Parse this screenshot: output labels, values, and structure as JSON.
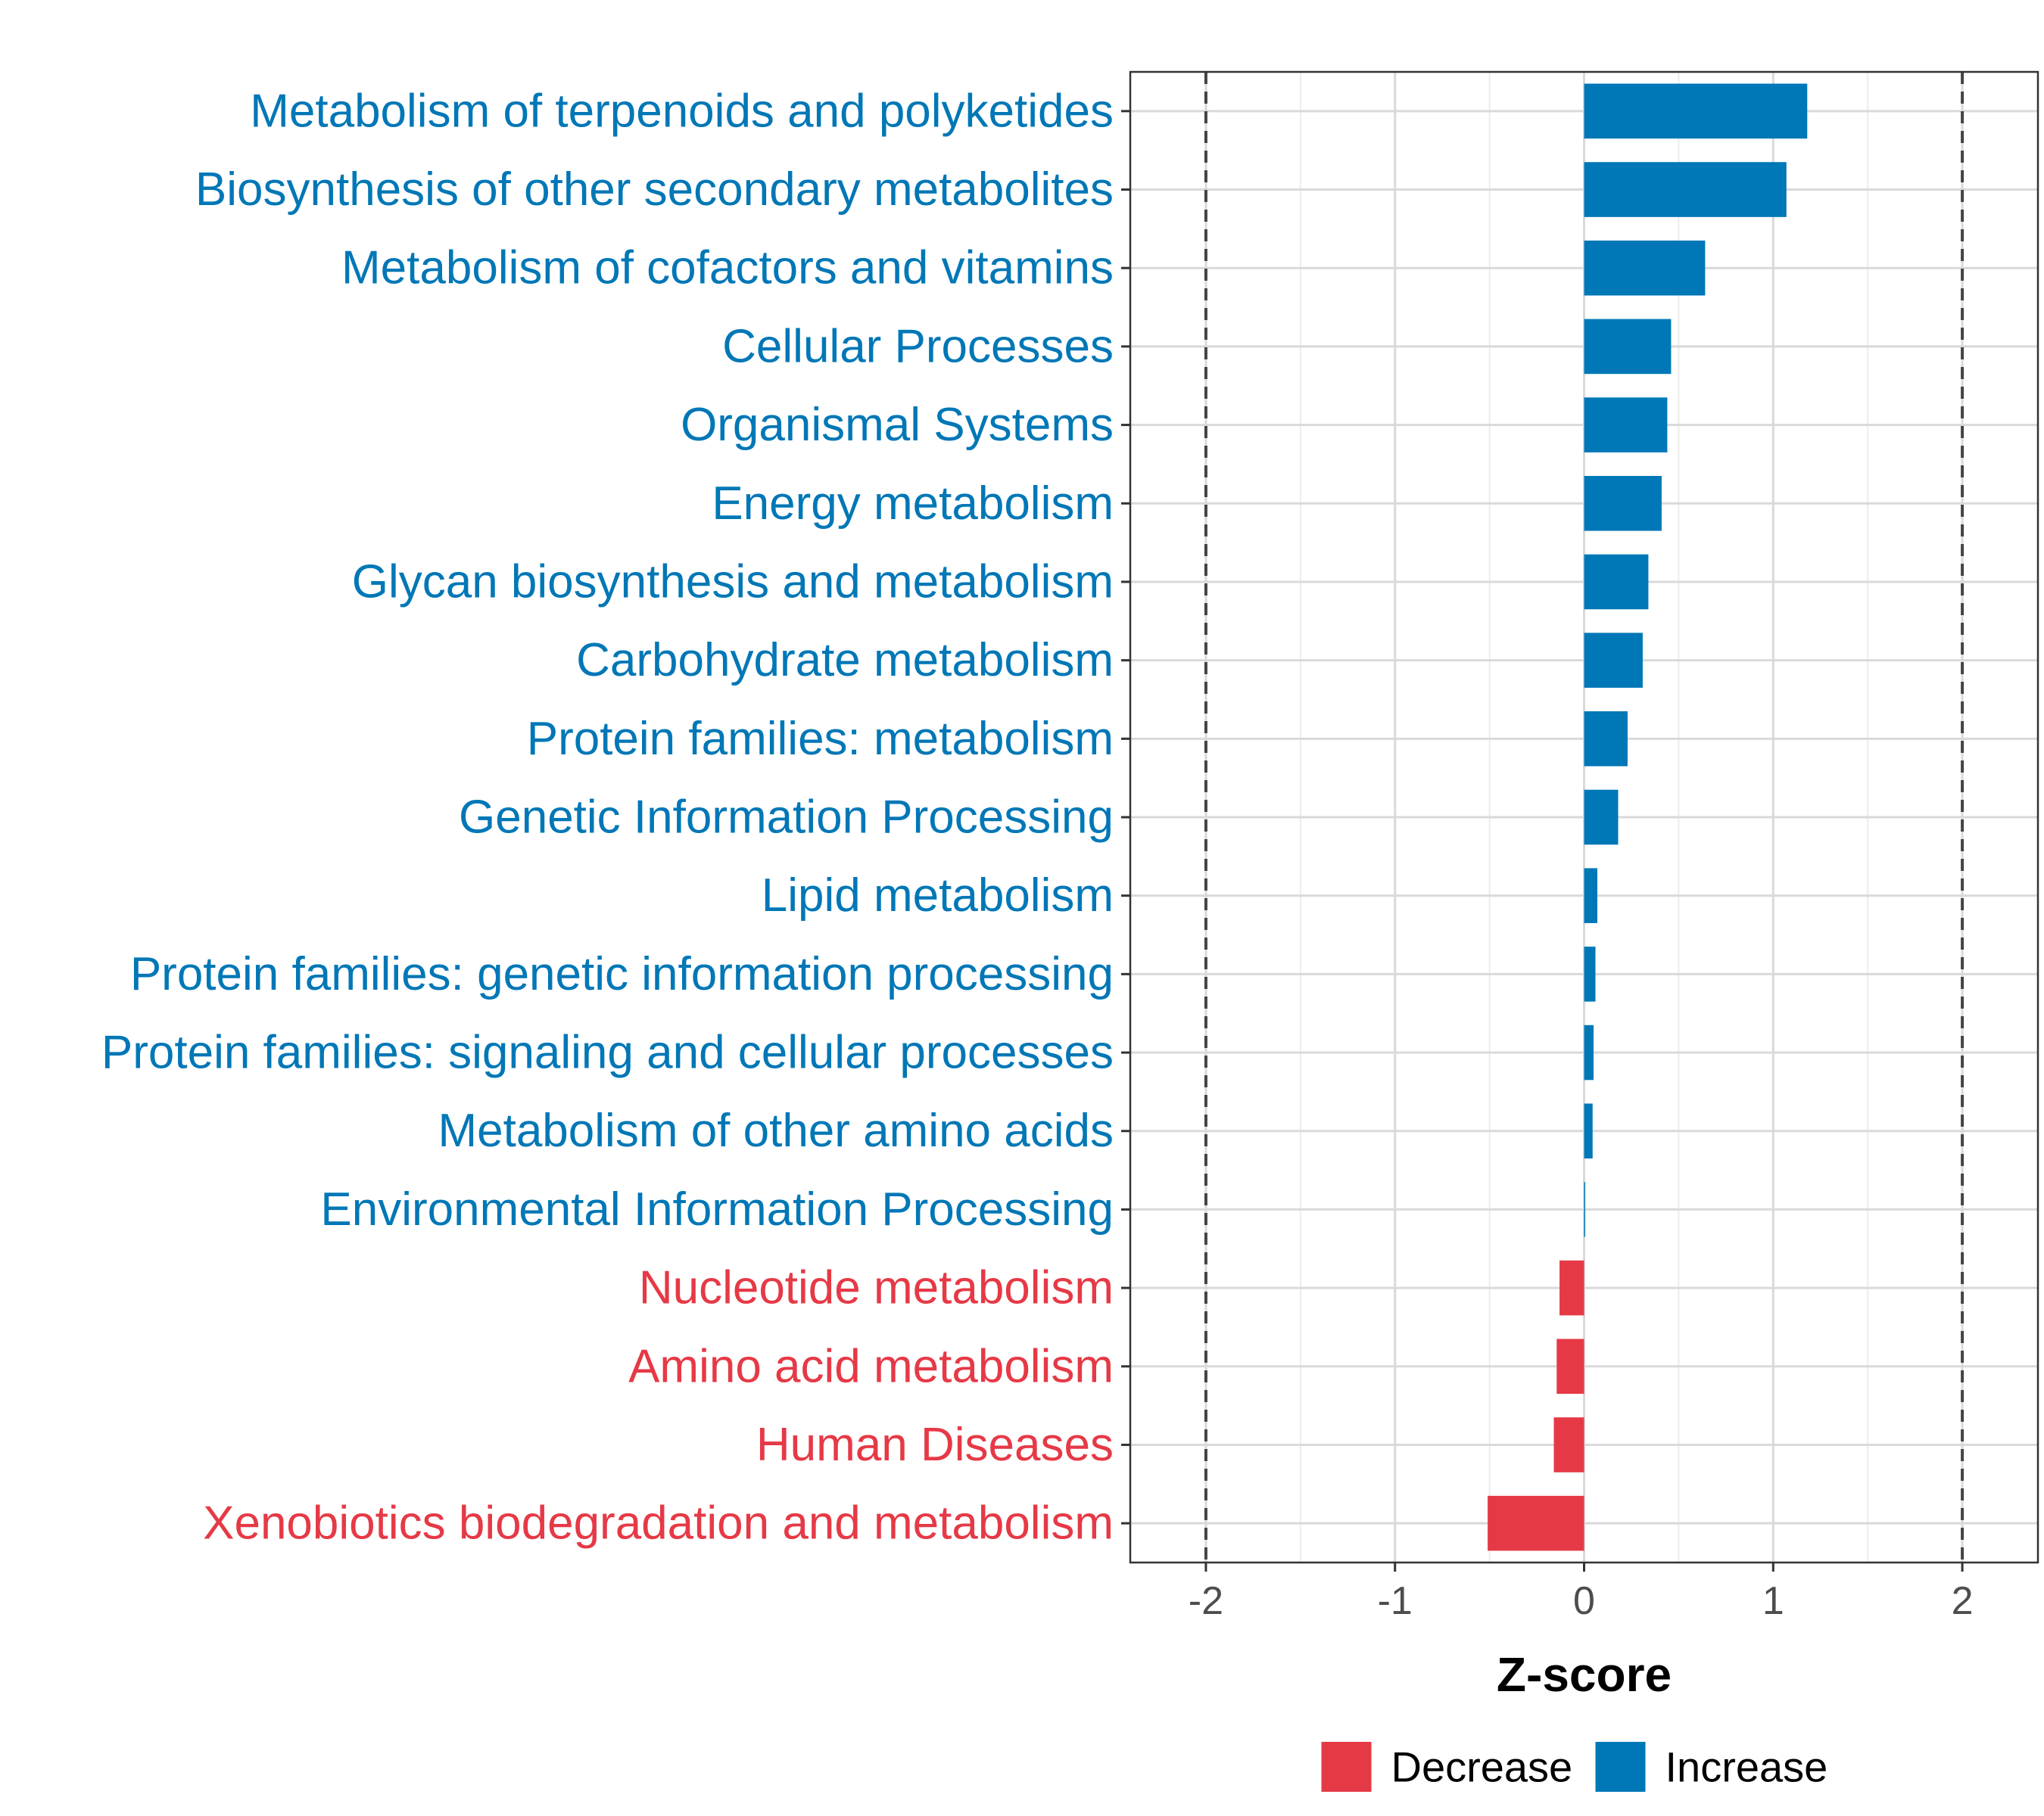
{
  "chart_data": {
    "type": "bar",
    "orientation": "horizontal",
    "title": "",
    "xlabel": "Z-score",
    "ylabel": "",
    "xlim": [
      -2.4,
      2.4
    ],
    "x_ticks": [
      -2,
      -1,
      0,
      1,
      2
    ],
    "x_tick_labels": [
      "-2",
      "-1",
      "0",
      "1",
      "2"
    ],
    "reference_lines": [
      -2,
      2
    ],
    "grid": true,
    "categories": [
      "Metabolism of terpenoids and polyketides",
      "Biosynthesis of other secondary metabolites",
      "Metabolism of cofactors and vitamins",
      "Cellular Processes",
      "Organismal Systems",
      "Energy metabolism",
      "Glycan biosynthesis and metabolism",
      "Carbohydrate metabolism",
      "Protein families: metabolism",
      "Genetic Information Processing",
      "Lipid metabolism",
      "Protein families: genetic information processing",
      "Protein families: signaling and cellular processes",
      "Metabolism of other amino acids",
      "Environmental Information Processing",
      "Nucleotide metabolism",
      "Amino acid metabolism",
      "Human Diseases",
      "Xenobiotics biodegradation and metabolism"
    ],
    "values": [
      1.18,
      1.07,
      0.64,
      0.46,
      0.44,
      0.41,
      0.34,
      0.31,
      0.23,
      0.18,
      0.07,
      0.06,
      0.05,
      0.045,
      0.005,
      -0.13,
      -0.145,
      -0.16,
      -0.51
    ],
    "groups": [
      "Increase",
      "Increase",
      "Increase",
      "Increase",
      "Increase",
      "Increase",
      "Increase",
      "Increase",
      "Increase",
      "Increase",
      "Increase",
      "Increase",
      "Increase",
      "Increase",
      "Increase",
      "Decrease",
      "Decrease",
      "Decrease",
      "Decrease"
    ],
    "legend": {
      "position": "bottom",
      "entries": [
        {
          "label": "Decrease",
          "color": "#e63946"
        },
        {
          "label": "Increase",
          "color": "#0077b6"
        }
      ]
    },
    "colors": {
      "Decrease": "#e63946",
      "Increase": "#0077b6"
    }
  }
}
